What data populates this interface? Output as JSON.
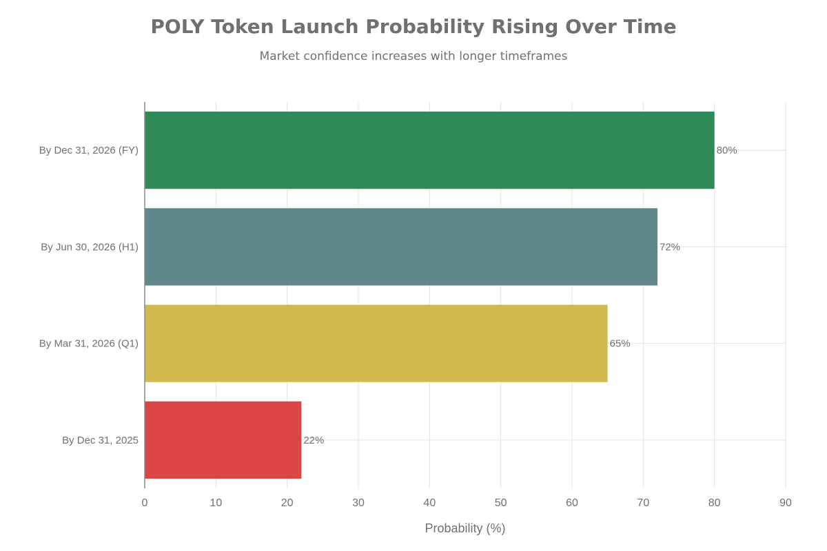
{
  "chart_data": {
    "type": "bar",
    "orientation": "horizontal",
    "title": "POLY Token Launch Probability Rising Over Time",
    "subtitle": "Market confidence increases with longer timeframes",
    "xlabel": "Probability (%)",
    "ylabel": "",
    "xlim": [
      0,
      90
    ],
    "x_ticks": [
      0,
      10,
      20,
      30,
      40,
      50,
      60,
      70,
      80,
      90
    ],
    "grid": true,
    "legend": "none",
    "categories": [
      "By Dec 31, 2026 (FY)",
      "By Jun 30, 2026 (H1)",
      "By Mar 31, 2026 (Q1)",
      "By Dec 31, 2025"
    ],
    "values": [
      80,
      72,
      65,
      22
    ],
    "data_labels": [
      "80%",
      "72%",
      "65%",
      "22%"
    ],
    "colors": [
      "#2e8b57",
      "#5f878c",
      "#d1b94d",
      "#db4545"
    ]
  }
}
